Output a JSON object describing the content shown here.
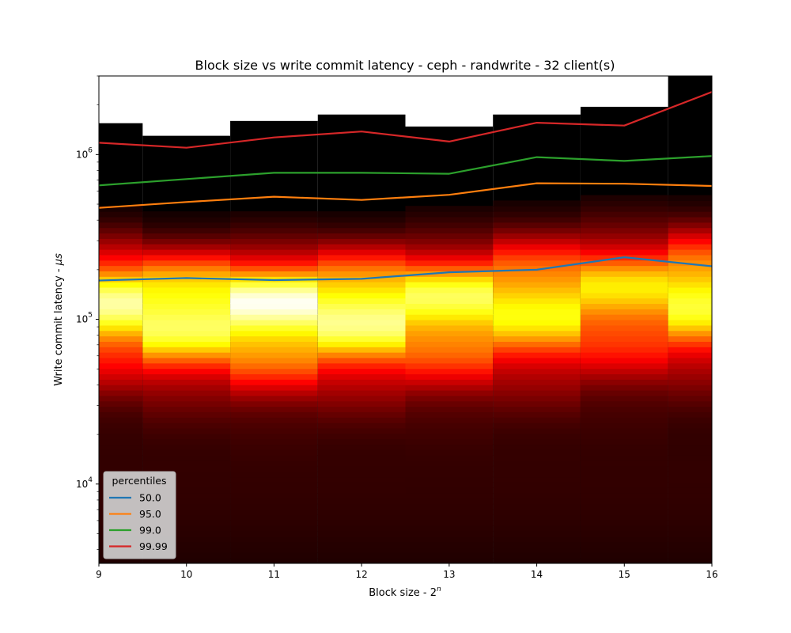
{
  "chart_data": {
    "type": "heatmap",
    "title": "Block size vs write commit latency - ceph - randwrite - 32 client(s)",
    "xlabel": "Block size - 2",
    "xlabel_superscript": "n",
    "ylabel": "Write commit latency - ",
    "ylabel_unit": "μs",
    "y_scale": "log",
    "xlim": [
      9,
      16
    ],
    "ylim": [
      3300,
      3000000
    ],
    "x_ticks": [
      9,
      10,
      11,
      12,
      13,
      14,
      15,
      16
    ],
    "y_major_ticks": [
      {
        "value": 10000,
        "base": "10",
        "exp": "4"
      },
      {
        "value": 100000,
        "base": "10",
        "exp": "5"
      },
      {
        "value": 1000000,
        "base": "10",
        "exp": "6"
      }
    ],
    "heatmap_columns": [
      {
        "x": 9,
        "top": 1550000,
        "peak": 130000,
        "spread": 1.0,
        "intensity": 0.9
      },
      {
        "x": 10,
        "top": 1300000,
        "peak": 120000,
        "spread": 1.0,
        "intensity": 0.95
      },
      {
        "x": 11,
        "top": 1600000,
        "peak": 118000,
        "spread": 1.02,
        "intensity": 1.0
      },
      {
        "x": 12,
        "top": 1750000,
        "peak": 120000,
        "spread": 1.02,
        "intensity": 0.95
      },
      {
        "x": 13,
        "top": 1480000,
        "peak": 125000,
        "spread": 1.05,
        "intensity": 0.85
      },
      {
        "x": 14,
        "top": 1750000,
        "peak": 135000,
        "spread": 1.08,
        "intensity": 0.8
      },
      {
        "x": 15,
        "top": 1950000,
        "peak": 145000,
        "spread": 1.1,
        "intensity": 0.72
      },
      {
        "x": 16,
        "top": 3000000,
        "peak": 150000,
        "spread": 1.05,
        "intensity": 0.85
      }
    ],
    "colormap": "hot",
    "legend": {
      "title": "percentiles",
      "position": "lower-left"
    },
    "x": [
      9,
      10,
      11,
      12,
      13,
      14,
      15,
      16
    ],
    "series": [
      {
        "name": "50.0",
        "color": "#1f77b4",
        "values": [
          172000,
          178000,
          173000,
          176000,
          193000,
          200000,
          238000,
          210000
        ]
      },
      {
        "name": "95.0",
        "color": "#ff7f0e",
        "values": [
          475000,
          515000,
          555000,
          530000,
          570000,
          670000,
          665000,
          645000
        ]
      },
      {
        "name": "99.0",
        "color": "#2ca02c",
        "values": [
          650000,
          710000,
          775000,
          775000,
          765000,
          965000,
          915000,
          980000
        ]
      },
      {
        "name": "99.99",
        "color": "#d62728",
        "values": [
          1180000,
          1100000,
          1270000,
          1380000,
          1200000,
          1560000,
          1500000,
          2400000
        ]
      }
    ]
  }
}
